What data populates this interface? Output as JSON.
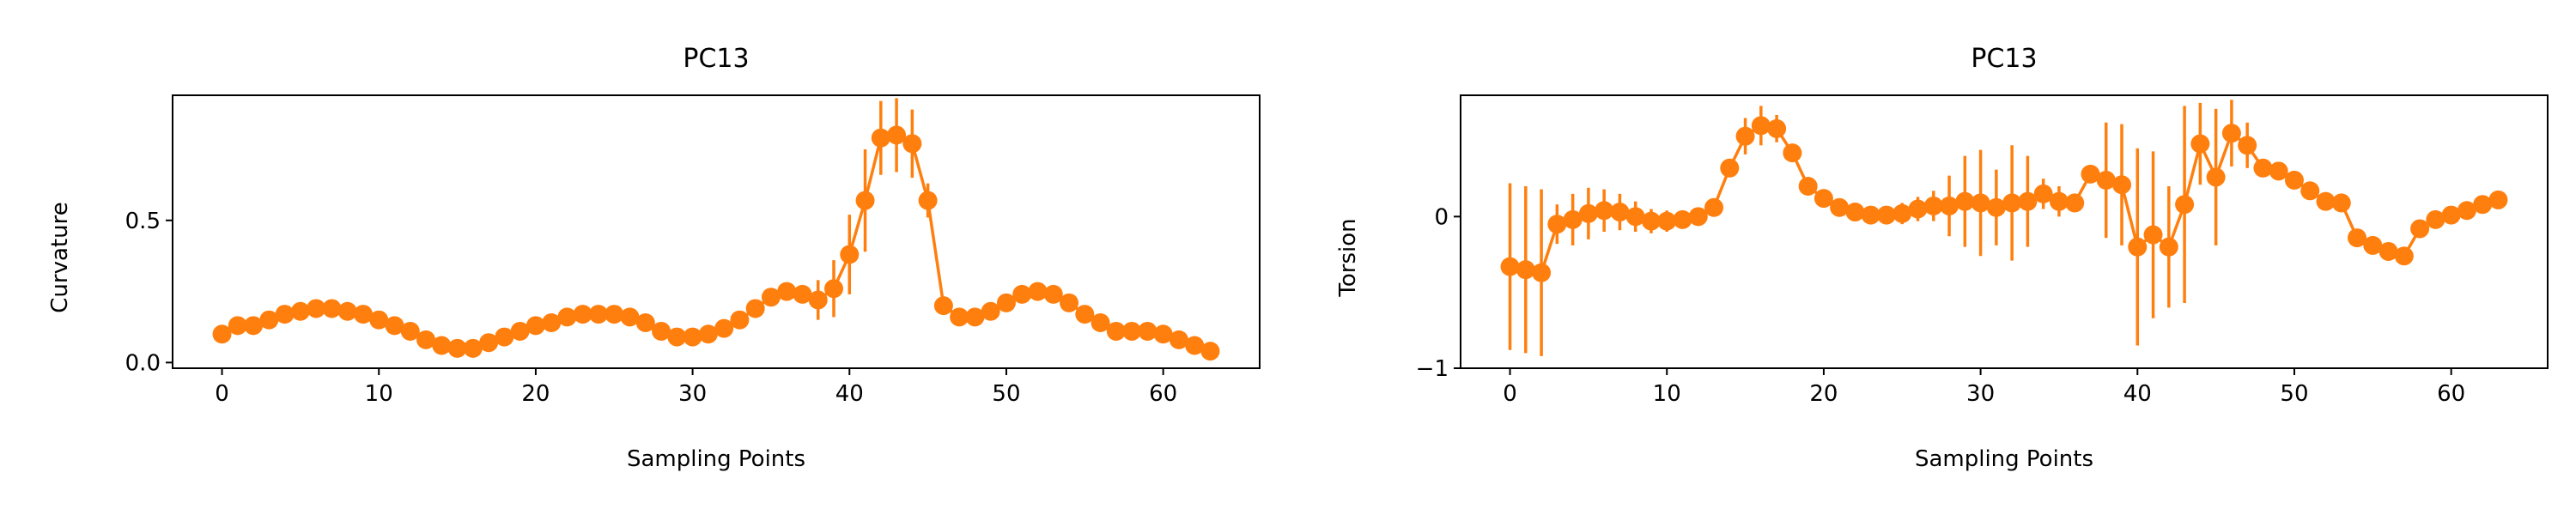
{
  "chart_data": [
    {
      "type": "line",
      "title": "PC13",
      "xlabel": "Sampling Points",
      "ylabel": "Curvature",
      "xlim": [
        -3.15,
        66.15
      ],
      "ylim": [
        -0.02,
        0.94
      ],
      "xticks": [
        0,
        10,
        20,
        30,
        40,
        50,
        60
      ],
      "yticks": [
        0.0,
        0.5
      ],
      "ytick_labels": [
        "0.0",
        "0.5"
      ],
      "color": "#ff7f0e",
      "x": [
        0,
        1,
        2,
        3,
        4,
        5,
        6,
        7,
        8,
        9,
        10,
        11,
        12,
        13,
        14,
        15,
        16,
        17,
        18,
        19,
        20,
        21,
        22,
        23,
        24,
        25,
        26,
        27,
        28,
        29,
        30,
        31,
        32,
        33,
        34,
        35,
        36,
        37,
        38,
        39,
        40,
        41,
        42,
        43,
        44,
        45,
        46,
        47,
        48,
        49,
        50,
        51,
        52,
        53,
        54,
        55,
        56,
        57,
        58,
        59,
        60,
        61,
        62,
        63
      ],
      "y": [
        0.1,
        0.13,
        0.13,
        0.15,
        0.17,
        0.18,
        0.19,
        0.19,
        0.18,
        0.17,
        0.15,
        0.13,
        0.11,
        0.08,
        0.06,
        0.05,
        0.05,
        0.07,
        0.09,
        0.11,
        0.13,
        0.14,
        0.16,
        0.17,
        0.17,
        0.17,
        0.16,
        0.14,
        0.11,
        0.09,
        0.09,
        0.1,
        0.12,
        0.15,
        0.19,
        0.23,
        0.25,
        0.24,
        0.22,
        0.26,
        0.38,
        0.57,
        0.79,
        0.8,
        0.77,
        0.57,
        0.2,
        0.16,
        0.16,
        0.18,
        0.21,
        0.24,
        0.25,
        0.24,
        0.21,
        0.17,
        0.14,
        0.11,
        0.11,
        0.11,
        0.1,
        0.08,
        0.06,
        0.04
      ],
      "yerr": [
        0.01,
        0.03,
        0.01,
        0.01,
        0.01,
        0.01,
        0.01,
        0.01,
        0.01,
        0.01,
        0.01,
        0.01,
        0.01,
        0.01,
        0.01,
        0.01,
        0.01,
        0.01,
        0.01,
        0.01,
        0.01,
        0.01,
        0.01,
        0.01,
        0.01,
        0.01,
        0.01,
        0.01,
        0.01,
        0.01,
        0.01,
        0.01,
        0.01,
        0.01,
        0.01,
        0.01,
        0.02,
        0.02,
        0.07,
        0.1,
        0.14,
        0.18,
        0.13,
        0.13,
        0.12,
        0.06,
        0.01,
        0.01,
        0.01,
        0.01,
        0.01,
        0.01,
        0.01,
        0.01,
        0.01,
        0.01,
        0.01,
        0.01,
        0.01,
        0.01,
        0.01,
        0.01,
        0.01,
        0.01
      ]
    },
    {
      "type": "line",
      "title": "PC13",
      "xlabel": "Sampling Points",
      "ylabel": "Torsion",
      "xlim": [
        -3.15,
        66.15
      ],
      "ylim": [
        -1.0,
        0.8
      ],
      "xticks": [
        0,
        10,
        20,
        30,
        40,
        50,
        60
      ],
      "yticks": [
        -1,
        0
      ],
      "ytick_labels": [
        "−1",
        "0"
      ],
      "color": "#ff7f0e",
      "x": [
        0,
        1,
        2,
        3,
        4,
        5,
        6,
        7,
        8,
        9,
        10,
        11,
        12,
        13,
        14,
        15,
        16,
        17,
        18,
        19,
        20,
        21,
        22,
        23,
        24,
        25,
        26,
        27,
        28,
        29,
        30,
        31,
        32,
        33,
        34,
        35,
        36,
        37,
        38,
        39,
        40,
        41,
        42,
        43,
        44,
        45,
        46,
        47,
        48,
        49,
        50,
        51,
        52,
        53,
        54,
        55,
        56,
        57,
        58,
        59,
        60,
        61,
        62,
        63
      ],
      "y": [
        -0.33,
        -0.35,
        -0.37,
        -0.05,
        -0.02,
        0.02,
        0.04,
        0.03,
        0.0,
        -0.03,
        -0.03,
        -0.02,
        0.0,
        0.06,
        0.32,
        0.53,
        0.6,
        0.58,
        0.42,
        0.2,
        0.12,
        0.06,
        0.03,
        0.01,
        0.01,
        0.02,
        0.05,
        0.07,
        0.07,
        0.1,
        0.09,
        0.06,
        0.09,
        0.1,
        0.15,
        0.1,
        0.09,
        0.28,
        0.24,
        0.21,
        -0.2,
        -0.12,
        -0.2,
        0.08,
        0.48,
        0.26,
        0.55,
        0.47,
        0.32,
        0.3,
        0.24,
        0.17,
        0.1,
        0.09,
        -0.14,
        -0.19,
        -0.23,
        -0.26,
        -0.08,
        -0.02,
        0.01,
        0.04,
        0.08,
        0.11
      ],
      "yerr": [
        0.55,
        0.55,
        0.55,
        0.13,
        0.17,
        0.17,
        0.14,
        0.12,
        0.1,
        0.08,
        0.07,
        0.04,
        0.04,
        0.05,
        0.05,
        0.12,
        0.13,
        0.09,
        0.05,
        0.04,
        0.03,
        0.03,
        0.04,
        0.05,
        0.06,
        0.07,
        0.08,
        0.1,
        0.2,
        0.3,
        0.35,
        0.25,
        0.38,
        0.3,
        0.1,
        0.1,
        0.06,
        0.06,
        0.38,
        0.4,
        0.65,
        0.55,
        0.4,
        0.65,
        0.27,
        0.45,
        0.22,
        0.15,
        0.05,
        0.04,
        0.04,
        0.04,
        0.04,
        0.04,
        0.04,
        0.04,
        0.04,
        0.05,
        0.05,
        0.05,
        0.05,
        0.05,
        0.05,
        0.05
      ]
    }
  ]
}
